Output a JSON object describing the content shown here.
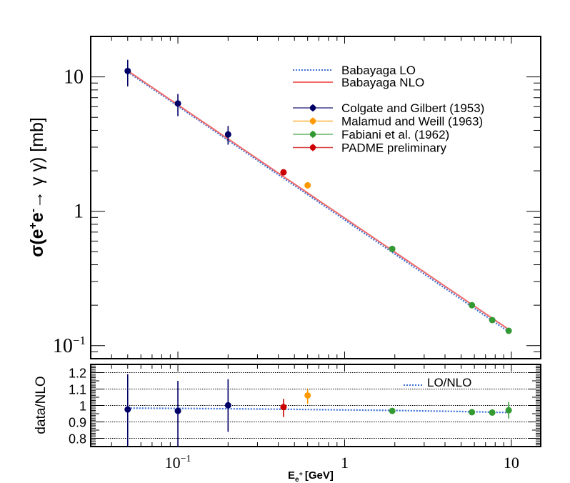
{
  "chart_data": [
    {
      "panel": "main",
      "type": "scatter",
      "title": "",
      "xlabel": "E_{e+} [GeV]",
      "xlabel_main": "E",
      "xlabel_sub": "e",
      "xlabel_sup": "+",
      "xlabel_unit": "[GeV]",
      "ylabel": "σ(e+e- → γ γ) [mb]",
      "ylabel_parts": {
        "sigma": "σ(e",
        "plus": "+",
        "e": "e",
        "minus": "-",
        "arrow": "→ γ γ) [mb]"
      },
      "xscale": "log",
      "yscale": "log",
      "xlim": [
        0.03,
        15
      ],
      "ylim": [
        0.08,
        20
      ],
      "xticks": [
        {
          "value": 0.1,
          "label": "10",
          "exp": "−1"
        },
        {
          "value": 1,
          "label": "1",
          "exp": ""
        },
        {
          "value": 10,
          "label": "10",
          "exp": ""
        }
      ],
      "yticks": [
        {
          "value": 0.1,
          "label": "10",
          "exp": "−1"
        },
        {
          "value": 1,
          "label": "1",
          "exp": ""
        },
        {
          "value": 10,
          "label": "10",
          "exp": ""
        }
      ],
      "grid": false,
      "legend_position": "top-right",
      "curves": [
        {
          "name": "Babayaga LO",
          "style": "dotted",
          "color": "#3b6fd6",
          "x": [
            0.05,
            9.64
          ],
          "y": [
            10.9,
            0.127
          ]
        },
        {
          "name": "Babayaga NLO",
          "style": "solid",
          "color": "#f06a6a",
          "x": [
            0.05,
            9.64
          ],
          "y": [
            11.1,
            0.132
          ]
        }
      ],
      "series": [
        {
          "name": "Colgate and Gilbert (1953)",
          "color": "#000066",
          "points": [
            {
              "x": 0.05,
              "y": 11.07,
              "ylo": 8.5,
              "yhi": 13.4
            },
            {
              "x": 0.1,
              "y": 6.34,
              "ylo": 5.1,
              "yhi": 7.46
            },
            {
              "x": 0.2,
              "y": 3.73,
              "ylo": 3.13,
              "yhi": 4.31
            }
          ]
        },
        {
          "name": "Malamud and Weill (1963)",
          "color": "#ff9900",
          "points": [
            {
              "x": 0.6,
              "y": 1.56,
              "ylo": 1.52,
              "yhi": 1.6
            }
          ]
        },
        {
          "name": "Fabiani et al. (1962)",
          "color": "#339933",
          "points": [
            {
              "x": 1.93,
              "y": 0.525,
              "ylo": 0.515,
              "yhi": 0.535
            },
            {
              "x": 5.8,
              "y": 0.2,
              "ylo": 0.197,
              "yhi": 0.203
            },
            {
              "x": 7.68,
              "y": 0.155,
              "ylo": 0.152,
              "yhi": 0.158
            },
            {
              "x": 9.64,
              "y": 0.129,
              "ylo": 0.126,
              "yhi": 0.132
            }
          ]
        },
        {
          "name": "PADME preliminary",
          "color": "#cc0000",
          "points": [
            {
              "x": 0.43,
              "y": 1.95,
              "ylo": 1.9,
              "yhi": 2.0
            }
          ]
        }
      ]
    },
    {
      "panel": "ratio",
      "type": "scatter",
      "title": "",
      "xlabel": "E_{e+} [GeV]",
      "ylabel": "data/NLO",
      "xscale": "log",
      "yscale": "linear",
      "xlim": [
        0.03,
        15
      ],
      "ylim": [
        0.75,
        1.25
      ],
      "yticks": [
        {
          "value": 0.8,
          "label": "0.8"
        },
        {
          "value": 0.9,
          "label": "0.9"
        },
        {
          "value": 1.0,
          "label": "1"
        },
        {
          "value": 1.1,
          "label": "1.1"
        },
        {
          "value": 1.2,
          "label": "1.2"
        }
      ],
      "grid": true,
      "legend_position": "top-right",
      "curves": [
        {
          "name": "LO/NLO",
          "style": "dotted",
          "color": "#3b6fd6",
          "x": [
            0.05,
            0.1,
            0.2,
            0.43,
            1.93,
            5.8,
            7.68,
            9.64
          ],
          "y": [
            0.984,
            0.982,
            0.98,
            0.977,
            0.97,
            0.962,
            0.959,
            0.957
          ]
        }
      ],
      "series": [
        {
          "name": "Colgate and Gilbert (1953)",
          "color": "#000066",
          "points": [
            {
              "x": 0.05,
              "y": 0.976,
              "ylo": 0.7,
              "yhi": 1.19
            },
            {
              "x": 0.1,
              "y": 0.967,
              "ylo": 0.7,
              "yhi": 1.15
            },
            {
              "x": 0.2,
              "y": 1.001,
              "ylo": 0.84,
              "yhi": 1.16
            }
          ]
        },
        {
          "name": "Malamud and Weill (1963)",
          "color": "#ff9900",
          "points": [
            {
              "x": 0.6,
              "y": 1.061,
              "ylo": 1.01,
              "yhi": 1.1
            }
          ]
        },
        {
          "name": "Fabiani et al. (1962)",
          "color": "#339933",
          "points": [
            {
              "x": 1.93,
              "y": 0.967,
              "ylo": 0.957,
              "yhi": 0.977
            },
            {
              "x": 5.8,
              "y": 0.959,
              "ylo": 0.944,
              "yhi": 0.974
            },
            {
              "x": 7.68,
              "y": 0.957,
              "ylo": 0.942,
              "yhi": 0.972
            },
            {
              "x": 9.64,
              "y": 0.971,
              "ylo": 0.92,
              "yhi": 1.02
            }
          ]
        },
        {
          "name": "PADME preliminary",
          "color": "#cc0000",
          "points": [
            {
              "x": 0.43,
              "y": 0.99,
              "ylo": 0.93,
              "yhi": 1.04
            }
          ]
        }
      ]
    }
  ],
  "legend": {
    "main": [
      {
        "label": "Babayaga LO",
        "kind": "dotted",
        "color": "#3b6fd6"
      },
      {
        "label": "Babayaga NLO",
        "kind": "line",
        "color": "#f06a6a"
      },
      {
        "label": "",
        "kind": "spacer",
        "color": ""
      },
      {
        "label": "Colgate and Gilbert (1953)",
        "kind": "marker",
        "color": "#000066"
      },
      {
        "label": "Malamud and Weill (1963)",
        "kind": "marker",
        "color": "#ff9900"
      },
      {
        "label": "Fabiani et al. (1962)",
        "kind": "marker",
        "color": "#339933"
      },
      {
        "label": "PADME preliminary",
        "kind": "marker",
        "color": "#cc0000"
      }
    ],
    "ratio": [
      {
        "label": "LO/NLO",
        "kind": "dotted",
        "color": "#3b6fd6"
      }
    ]
  }
}
